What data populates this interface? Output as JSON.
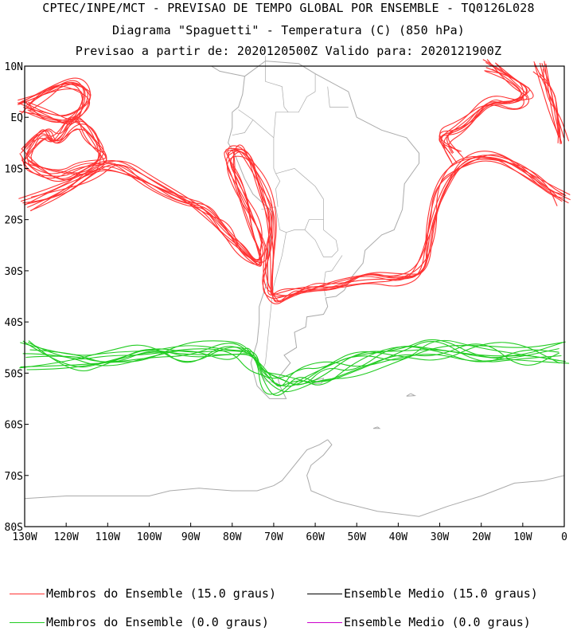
{
  "header": {
    "line1": "CPTEC/INPE/MCT - PREVISAO DE TEMPO GLOBAL POR ENSEMBLE - TQ0126L028",
    "line2": "Diagrama \"Spaguetti\" - Temperatura (C) (850 hPa)",
    "line3": "Previsao a partir de: 2020120500Z  Valido para: 2020121900Z"
  },
  "map": {
    "lon_range": [
      -130,
      0
    ],
    "lat_range": [
      -80,
      10
    ],
    "lon_ticks": [
      "130W",
      "120W",
      "110W",
      "100W",
      "90W",
      "80W",
      "70W",
      "60W",
      "50W",
      "40W",
      "30W",
      "20W",
      "10W",
      "0"
    ],
    "lat_ticks": [
      "10N",
      "EQ",
      "10S",
      "20S",
      "30S",
      "40S",
      "50S",
      "60S",
      "70S",
      "80S"
    ],
    "colors": {
      "coast": "#aaaaaa",
      "member_15": "#ff3333",
      "member_0": "#22cc22",
      "mean_15": "#000000",
      "mean_0": "#cc00cc"
    }
  },
  "legend": {
    "member_15": "Membros do Ensemble (15.0 graus)",
    "mean_15": "Ensemble Medio (15.0 graus)",
    "member_0": "Membros do Ensemble (0.0 graus)",
    "mean_0": "Ensemble Medio (0.0 graus)"
  }
}
